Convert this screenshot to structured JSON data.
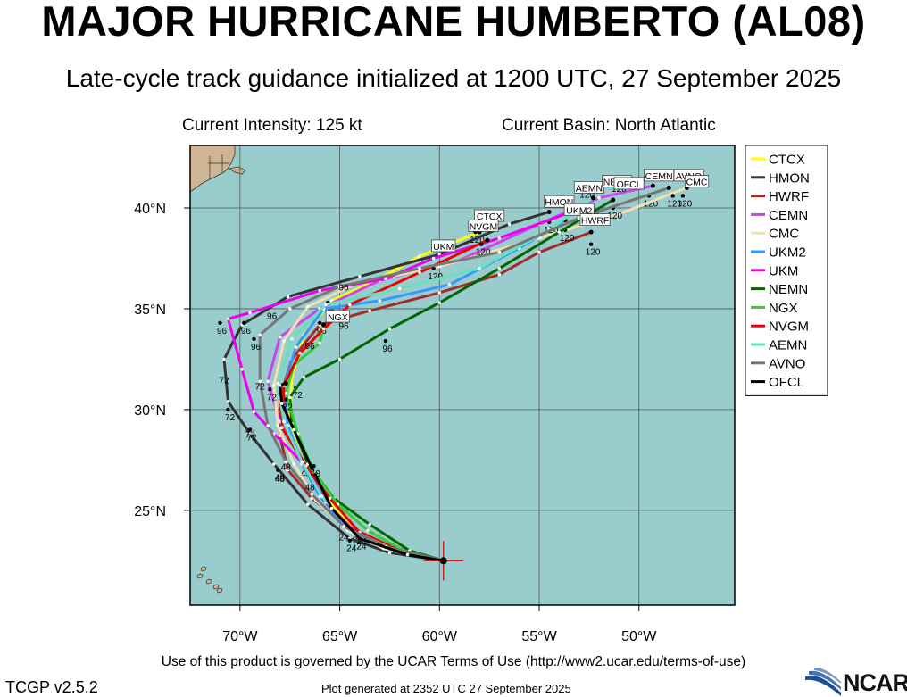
{
  "header": {
    "title": "MAJOR HURRICANE HUMBERTO (AL08)",
    "subtitle": "Late-cycle track guidance initialized at 1200 UTC, 27 September 2025",
    "current_intensity": "Current Intensity: 125 kt",
    "current_basin": "Current Basin: North Atlantic"
  },
  "footer": {
    "terms": "Use of this product is governed by the UCAR Terms of Use (http://www2.ucar.edu/terms-of-use)",
    "version": "TCGP v2.5.2",
    "generated": "Plot generated at 2352 UTC   27 September 2025",
    "logo_text": "NCAR"
  },
  "colors": {
    "ocean": "#99cccc",
    "land": "#cfb593",
    "grid": "#555555",
    "marker": "#cc0000"
  },
  "chart_data": {
    "type": "line",
    "chart_kind": "tropical cyclone track guidance map",
    "x_axis": {
      "lim": [
        -72.5,
        -45.2
      ],
      "ticks": [
        -70,
        -65,
        -60,
        -55,
        -50
      ],
      "tick_labels": [
        "70°W",
        "65°W",
        "60°W",
        "55°W",
        "50°W"
      ]
    },
    "y_axis": {
      "lim": [
        20.3,
        43.1
      ],
      "ticks": [
        25,
        30,
        35,
        40
      ],
      "tick_labels": [
        "25°N",
        "30°N",
        "35°N",
        "40°N"
      ]
    },
    "grid": true,
    "legend_position": "right",
    "storm_position": {
      "lon": -59.8,
      "lat": 22.5
    },
    "series": [
      {
        "name": "CTCX",
        "color": "#ffff00",
        "points": [
          [
            -59.8,
            22.5
          ],
          [
            -61.9,
            23.0
          ],
          [
            -64.0,
            23.8
          ],
          [
            -65.5,
            25.4
          ],
          [
            -66.6,
            27.3
          ],
          [
            -67.5,
            29.4
          ],
          [
            -67.4,
            31.6
          ],
          [
            -66.8,
            33.7
          ],
          [
            -65.4,
            35.4
          ],
          [
            -63.0,
            36.5
          ],
          [
            -61.0,
            37.6
          ],
          [
            -58.0,
            38.8
          ]
        ],
        "labels": [
          [
            -64.2,
            23.9,
            "24"
          ],
          [
            -66.8,
            27.2,
            "48"
          ],
          [
            -67.2,
            31.1,
            "72"
          ],
          [
            -65.6,
            35.3,
            "96"
          ],
          [
            -58.2,
            38.8,
            "120"
          ]
        ]
      },
      {
        "name": "HMON",
        "color": "#333333",
        "points": [
          [
            -59.8,
            22.5
          ],
          [
            -62.5,
            22.9
          ],
          [
            -64.5,
            23.6
          ],
          [
            -66.6,
            25.3
          ],
          [
            -68.3,
            27.3
          ],
          [
            -69.5,
            28.8
          ],
          [
            -70.6,
            30.4
          ],
          [
            -70.8,
            32.5
          ],
          [
            -69.9,
            34.2
          ],
          [
            -67.6,
            35.6
          ],
          [
            -64.0,
            36.6
          ],
          [
            -60.0,
            37.7
          ],
          [
            -56.5,
            39.2
          ],
          [
            -54.5,
            39.8
          ]
        ],
        "labels": [
          [
            -64.5,
            23.5,
            "24"
          ],
          [
            -68.1,
            27.0,
            "48"
          ],
          [
            -70.6,
            30.0,
            "72"
          ],
          [
            -69.8,
            34.3,
            "96"
          ],
          [
            -54.5,
            39.3,
            "120"
          ]
        ]
      },
      {
        "name": "HWRF",
        "color": "#a52a2a",
        "points": [
          [
            -59.8,
            22.5
          ],
          [
            -62.4,
            23.2
          ],
          [
            -64.6,
            24.2
          ],
          [
            -66.4,
            25.6
          ],
          [
            -67.6,
            27.0
          ],
          [
            -68.0,
            28.7
          ],
          [
            -68.0,
            30.6
          ],
          [
            -67.4,
            32.5
          ],
          [
            -66.0,
            34.2
          ],
          [
            -63.5,
            34.9
          ],
          [
            -60.0,
            35.8
          ],
          [
            -57.0,
            36.7
          ],
          [
            -55.0,
            37.8
          ],
          [
            -52.4,
            38.8
          ]
        ],
        "labels": [
          [
            -66.0,
            34.3,
            "96"
          ],
          [
            -52.4,
            38.2,
            "120"
          ]
        ]
      },
      {
        "name": "CEMN",
        "color": "#cc44ee",
        "points": [
          [
            -59.8,
            22.5
          ],
          [
            -62.3,
            23.0
          ],
          [
            -64.3,
            23.9
          ],
          [
            -65.8,
            25.6
          ],
          [
            -66.8,
            27.4
          ],
          [
            -68.0,
            29.4
          ],
          [
            -68.6,
            31.4
          ],
          [
            -68.0,
            33.6
          ],
          [
            -66.0,
            35.0
          ],
          [
            -63.0,
            36.4
          ],
          [
            -59.0,
            37.4
          ],
          [
            -55.0,
            39.2
          ],
          [
            -52.0,
            40.5
          ],
          [
            -49.3,
            41.1
          ]
        ],
        "labels": [
          [
            -49.5,
            40.6,
            "120"
          ]
        ]
      },
      {
        "name": "CMC",
        "color": "#f5deb3",
        "points": [
          [
            -59.8,
            22.5
          ],
          [
            -62.8,
            23.1
          ],
          [
            -64.6,
            24.0
          ],
          [
            -66.2,
            25.5
          ],
          [
            -67.3,
            27.3
          ],
          [
            -68.1,
            29.2
          ],
          [
            -68.3,
            31.2
          ],
          [
            -67.8,
            33.4
          ],
          [
            -66.6,
            35.1
          ],
          [
            -64.3,
            36.2
          ],
          [
            -60.0,
            37.1
          ],
          [
            -55.0,
            38.5
          ],
          [
            -51.0,
            39.7
          ],
          [
            -47.6,
            41.0
          ]
        ],
        "labels": [
          [
            -47.8,
            40.6,
            "120"
          ]
        ]
      },
      {
        "name": "UKM2",
        "color": "#3399ff",
        "points": [
          [
            -59.8,
            22.5
          ],
          [
            -62.6,
            23.1
          ],
          [
            -64.6,
            24.1
          ],
          [
            -66.0,
            25.7
          ],
          [
            -66.9,
            27.3
          ],
          [
            -67.6,
            29.2
          ],
          [
            -67.8,
            31.1
          ],
          [
            -67.2,
            33.1
          ],
          [
            -65.8,
            35.0
          ],
          [
            -63.0,
            35.4
          ],
          [
            -59.5,
            36.2
          ],
          [
            -56.0,
            38.0
          ],
          [
            -53.7,
            39.4
          ]
        ],
        "labels": [
          [
            -53.7,
            38.9,
            "120"
          ]
        ]
      },
      {
        "name": "UKM",
        "color": "#ee00ee",
        "points": [
          [
            -59.8,
            22.5
          ],
          [
            -62.2,
            23.0
          ],
          [
            -64.2,
            23.9
          ],
          [
            -65.7,
            25.4
          ],
          [
            -66.8,
            27.3
          ],
          [
            -68.3,
            28.8
          ],
          [
            -69.3,
            29.9
          ],
          [
            -69.9,
            32.0
          ],
          [
            -70.6,
            34.5
          ],
          [
            -69.5,
            34.8
          ],
          [
            -66.0,
            35.9
          ],
          [
            -62.7,
            36.5
          ],
          [
            -60.3,
            37.5
          ],
          [
            -57.0,
            38.5
          ],
          [
            -53.4,
            39.8
          ]
        ],
        "labels": [
          [
            -69.5,
            29.0,
            "72"
          ],
          [
            -71.0,
            34.3,
            "96"
          ],
          [
            -60.3,
            37.0,
            "120"
          ]
        ]
      },
      {
        "name": "NEMN",
        "color": "#006600",
        "points": [
          [
            -59.8,
            22.5
          ],
          [
            -61.5,
            23.0
          ],
          [
            -63.5,
            24.3
          ],
          [
            -65.3,
            25.6
          ],
          [
            -66.6,
            27.3
          ],
          [
            -67.4,
            29.3
          ],
          [
            -67.5,
            30.6
          ],
          [
            -66.8,
            31.6
          ],
          [
            -65.0,
            32.5
          ],
          [
            -62.5,
            34.0
          ],
          [
            -60.0,
            35.3
          ],
          [
            -57.0,
            37.0
          ],
          [
            -54.0,
            38.8
          ],
          [
            -51.3,
            40.4
          ]
        ],
        "labels": [
          [
            -62.7,
            33.4,
            "96"
          ],
          [
            -51.3,
            40.0,
            "120"
          ]
        ]
      },
      {
        "name": "NGX",
        "color": "#33cc33",
        "points": [
          [
            -59.8,
            22.5
          ],
          [
            -61.8,
            23.0
          ],
          [
            -63.6,
            24.0
          ],
          [
            -65.1,
            25.3
          ],
          [
            -66.3,
            26.9
          ],
          [
            -67.1,
            28.8
          ],
          [
            -67.7,
            30.8
          ],
          [
            -67.3,
            32.2
          ],
          [
            -66.0,
            33.3
          ],
          [
            -65.8,
            34.2
          ]
        ],
        "labels": [
          [
            -67.7,
            30.5,
            "72"
          ]
        ]
      },
      {
        "name": "NVGM",
        "color": "#ee0000",
        "points": [
          [
            -59.8,
            22.5
          ],
          [
            -62.0,
            23.0
          ],
          [
            -64.0,
            23.9
          ],
          [
            -65.5,
            25.6
          ],
          [
            -66.7,
            27.2
          ],
          [
            -67.9,
            29.1
          ],
          [
            -67.8,
            31.2
          ],
          [
            -67.0,
            32.8
          ],
          [
            -65.8,
            34.0
          ],
          [
            -64.5,
            35.2
          ],
          [
            -61.0,
            36.8
          ],
          [
            -57.6,
            38.4
          ]
        ],
        "labels": [
          [
            -57.9,
            38.2,
            "120"
          ]
        ]
      },
      {
        "name": "AEMN",
        "color": "#66e0c0",
        "points": [
          [
            -59.8,
            22.5
          ],
          [
            -62.4,
            23.1
          ],
          [
            -64.4,
            24.0
          ],
          [
            -65.9,
            25.7
          ],
          [
            -66.9,
            27.4
          ],
          [
            -67.8,
            29.4
          ],
          [
            -68.1,
            31.3
          ],
          [
            -67.4,
            33.5
          ],
          [
            -65.7,
            35.2
          ],
          [
            -62.0,
            36.0
          ],
          [
            -58.0,
            37.0
          ],
          [
            -54.5,
            38.9
          ],
          [
            -52.3,
            40.5
          ]
        ],
        "labels": [
          [
            -52.5,
            40.1,
            "120"
          ]
        ]
      },
      {
        "name": "AVNO",
        "color": "#777777",
        "points": [
          [
            -59.8,
            22.5
          ],
          [
            -62.7,
            23.2
          ],
          [
            -64.8,
            24.2
          ],
          [
            -66.4,
            25.8
          ],
          [
            -67.7,
            27.4
          ],
          [
            -68.6,
            29.2
          ],
          [
            -69.0,
            31.4
          ],
          [
            -69.0,
            33.7
          ],
          [
            -67.5,
            35.0
          ],
          [
            -65.0,
            36.1
          ],
          [
            -61.0,
            37.0
          ],
          [
            -57.0,
            37.8
          ],
          [
            -53.0,
            39.5
          ],
          [
            -48.5,
            41.0
          ]
        ],
        "labels": [
          [
            -69.3,
            33.5,
            "96"
          ],
          [
            -48.3,
            40.6,
            "120"
          ]
        ]
      },
      {
        "name": "OFCL",
        "color": "#000000",
        "points": [
          [
            -59.8,
            22.5
          ],
          [
            -61.6,
            22.8
          ],
          [
            -64.0,
            23.6
          ],
          [
            -65.4,
            25.1
          ],
          [
            -66.3,
            26.9
          ],
          [
            -67.3,
            29.0
          ],
          [
            -67.9,
            30.3
          ],
          [
            -68.0,
            31.2
          ],
          [
            -67.7,
            31.3
          ]
        ],
        "labels": [
          [
            -64.0,
            23.6,
            "24"
          ],
          [
            -66.3,
            27.2,
            "48"
          ],
          [
            -68.5,
            31.0,
            "72"
          ]
        ]
      }
    ],
    "box_labels": [
      {
        "text": "CTCX",
        "lon": -57.5,
        "lat": 39.6
      },
      {
        "text": "NVGM",
        "lon": -57.8,
        "lat": 39.1
      },
      {
        "text": "UKM",
        "lon": -59.8,
        "lat": 38.1
      },
      {
        "text": "HMON",
        "lon": -54.0,
        "lat": 40.3
      },
      {
        "text": "UKM2",
        "lon": -53.0,
        "lat": 39.9
      },
      {
        "text": "HWRF",
        "lon": -52.2,
        "lat": 39.4
      },
      {
        "text": "AEMN",
        "lon": -52.5,
        "lat": 41.0
      },
      {
        "text": "NEMN",
        "lon": -51.1,
        "lat": 41.3
      },
      {
        "text": "OFCL",
        "lon": -50.5,
        "lat": 41.2
      },
      {
        "text": "CEMN",
        "lon": -49.0,
        "lat": 41.6
      },
      {
        "text": "AVNO",
        "lon": -47.5,
        "lat": 41.6
      },
      {
        "text": "CMC",
        "lon": -47.1,
        "lat": 41.3
      },
      {
        "text": "NGX",
        "lon": -65.1,
        "lat": 34.6
      }
    ],
    "extra_labels": [
      {
        "text": "24",
        "lon": -64.8,
        "lat": 23.5
      },
      {
        "text": "24",
        "lon": -63.9,
        "lat": 23.3
      },
      {
        "text": "48",
        "lon": -67.7,
        "lat": 27.0
      },
      {
        "text": "48",
        "lon": -68.0,
        "lat": 26.4
      },
      {
        "text": "48",
        "lon": -66.5,
        "lat": 26.0
      },
      {
        "text": "72",
        "lon": -70.8,
        "lat": 31.3
      },
      {
        "text": "72",
        "lon": -69.5,
        "lat": 28.6
      },
      {
        "text": "72",
        "lon": -69.0,
        "lat": 31.0
      },
      {
        "text": "96",
        "lon": -68.4,
        "lat": 34.5
      },
      {
        "text": "96",
        "lon": -64.8,
        "lat": 34.0
      },
      {
        "text": "96",
        "lon": -66.5,
        "lat": 33.0
      },
      {
        "text": "96",
        "lon": -64.8,
        "lat": 35.9
      },
      {
        "text": "120",
        "lon": -52.6,
        "lat": 40.5
      },
      {
        "text": "120",
        "lon": -51.0,
        "lat": 40.8
      }
    ]
  }
}
